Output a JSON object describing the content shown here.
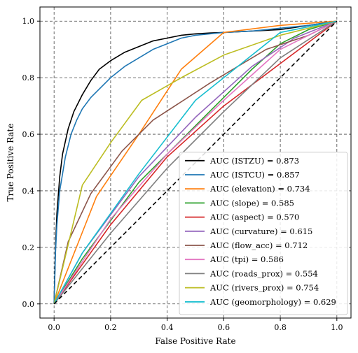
{
  "chart_data": {
    "type": "line",
    "title": "",
    "xlabel": "False Positive Rate",
    "ylabel": "True Positive Rate",
    "xlim": [
      -0.05,
      1.05
    ],
    "ylim": [
      -0.05,
      1.05
    ],
    "xticks": [
      0.0,
      0.2,
      0.4,
      0.6,
      0.8,
      1.0
    ],
    "yticks": [
      0.0,
      0.2,
      0.4,
      0.6,
      0.8,
      1.0
    ],
    "xtick_labels": [
      "0.0",
      "0.2",
      "0.4",
      "0.6",
      "0.8",
      "1.0"
    ],
    "ytick_labels": [
      "0.0",
      "0.2",
      "0.4",
      "0.6",
      "0.8",
      "1.0"
    ],
    "grid": true,
    "legend_position": "lower-right",
    "reference_line": {
      "x": [
        0,
        1
      ],
      "y": [
        0,
        1
      ],
      "color": "#000000",
      "style": "dashed"
    },
    "series": [
      {
        "name": "AUC (ISTZU) = 0.873",
        "color": "#000000",
        "x": [
          0,
          0.005,
          0.01,
          0.02,
          0.03,
          0.05,
          0.07,
          0.1,
          0.13,
          0.16,
          0.2,
          0.25,
          0.3,
          0.35,
          0.4,
          0.45,
          0.5,
          0.55,
          0.6,
          0.7,
          0.8,
          0.9,
          1.0
        ],
        "y": [
          0,
          0.2,
          0.32,
          0.45,
          0.53,
          0.62,
          0.68,
          0.74,
          0.79,
          0.83,
          0.86,
          0.89,
          0.91,
          0.93,
          0.94,
          0.95,
          0.955,
          0.958,
          0.96,
          0.965,
          0.97,
          0.985,
          1.0
        ]
      },
      {
        "name": "AUC (ISTCU) = 0.857",
        "color": "#1f77b4",
        "x": [
          0,
          0.005,
          0.01,
          0.02,
          0.04,
          0.06,
          0.08,
          0.1,
          0.13,
          0.16,
          0.2,
          0.25,
          0.3,
          0.35,
          0.4,
          0.45,
          0.5,
          0.55,
          0.6,
          0.7,
          0.8,
          0.9,
          1.0
        ],
        "y": [
          0,
          0.18,
          0.28,
          0.4,
          0.52,
          0.6,
          0.65,
          0.69,
          0.73,
          0.76,
          0.8,
          0.84,
          0.87,
          0.9,
          0.92,
          0.94,
          0.95,
          0.955,
          0.96,
          0.965,
          0.975,
          0.985,
          1.0
        ]
      },
      {
        "name": "AUC (elevation) = 0.734",
        "color": "#ff7f0e",
        "x": [
          0,
          0.15,
          0.3,
          0.45,
          0.6,
          0.8,
          1.0
        ],
        "y": [
          0,
          0.38,
          0.6,
          0.83,
          0.96,
          0.985,
          1.0
        ]
      },
      {
        "name": "AUC (slope) = 0.585",
        "color": "#2ca02c",
        "x": [
          0,
          0.1,
          0.3,
          0.5,
          0.7,
          0.8,
          0.9,
          1.0
        ],
        "y": [
          0,
          0.16,
          0.43,
          0.63,
          0.83,
          0.92,
          0.97,
          1.0
        ]
      },
      {
        "name": "AUC (aspect) = 0.570",
        "color": "#d62728",
        "x": [
          0,
          0.2,
          0.4,
          0.6,
          0.8,
          1.0
        ],
        "y": [
          0,
          0.28,
          0.52,
          0.7,
          0.85,
          1.0
        ]
      },
      {
        "name": "AUC (curvature) = 0.615",
        "color": "#9467bd",
        "x": [
          0,
          0.1,
          0.3,
          0.5,
          0.7,
          0.85,
          1.0
        ],
        "y": [
          0,
          0.18,
          0.45,
          0.66,
          0.84,
          0.94,
          1.0
        ]
      },
      {
        "name": "AUC (flow_acc) = 0.712",
        "color": "#8c564b",
        "x": [
          0,
          0.05,
          0.13,
          0.24,
          0.35,
          0.55,
          0.75,
          0.9,
          1.0
        ],
        "y": [
          0,
          0.22,
          0.39,
          0.54,
          0.65,
          0.78,
          0.9,
          0.95,
          1.0
        ]
      },
      {
        "name": "AUC (tpi) = 0.586",
        "color": "#e377c2",
        "x": [
          0,
          0.2,
          0.4,
          0.6,
          0.8,
          1.0
        ],
        "y": [
          0,
          0.3,
          0.53,
          0.72,
          0.9,
          1.0
        ]
      },
      {
        "name": "AUC (roads_prox) = 0.554",
        "color": "#7f7f7f",
        "x": [
          0,
          0.2,
          0.4,
          0.6,
          0.8,
          1.0
        ],
        "y": [
          0,
          0.25,
          0.48,
          0.68,
          0.87,
          1.0
        ]
      },
      {
        "name": "AUC (rivers_prox) = 0.754",
        "color": "#bcbd22",
        "x": [
          0,
          0.1,
          0.2,
          0.31,
          0.45,
          0.6,
          0.8,
          1.0
        ],
        "y": [
          0,
          0.42,
          0.57,
          0.72,
          0.8,
          0.88,
          0.95,
          1.0
        ]
      },
      {
        "name": "AUC (geomorphology) = 0.629",
        "color": "#17becf",
        "x": [
          0,
          0.1,
          0.3,
          0.5,
          0.7,
          0.8,
          1.0
        ],
        "y": [
          0,
          0.18,
          0.46,
          0.72,
          0.88,
          0.96,
          1.0
        ]
      }
    ]
  }
}
